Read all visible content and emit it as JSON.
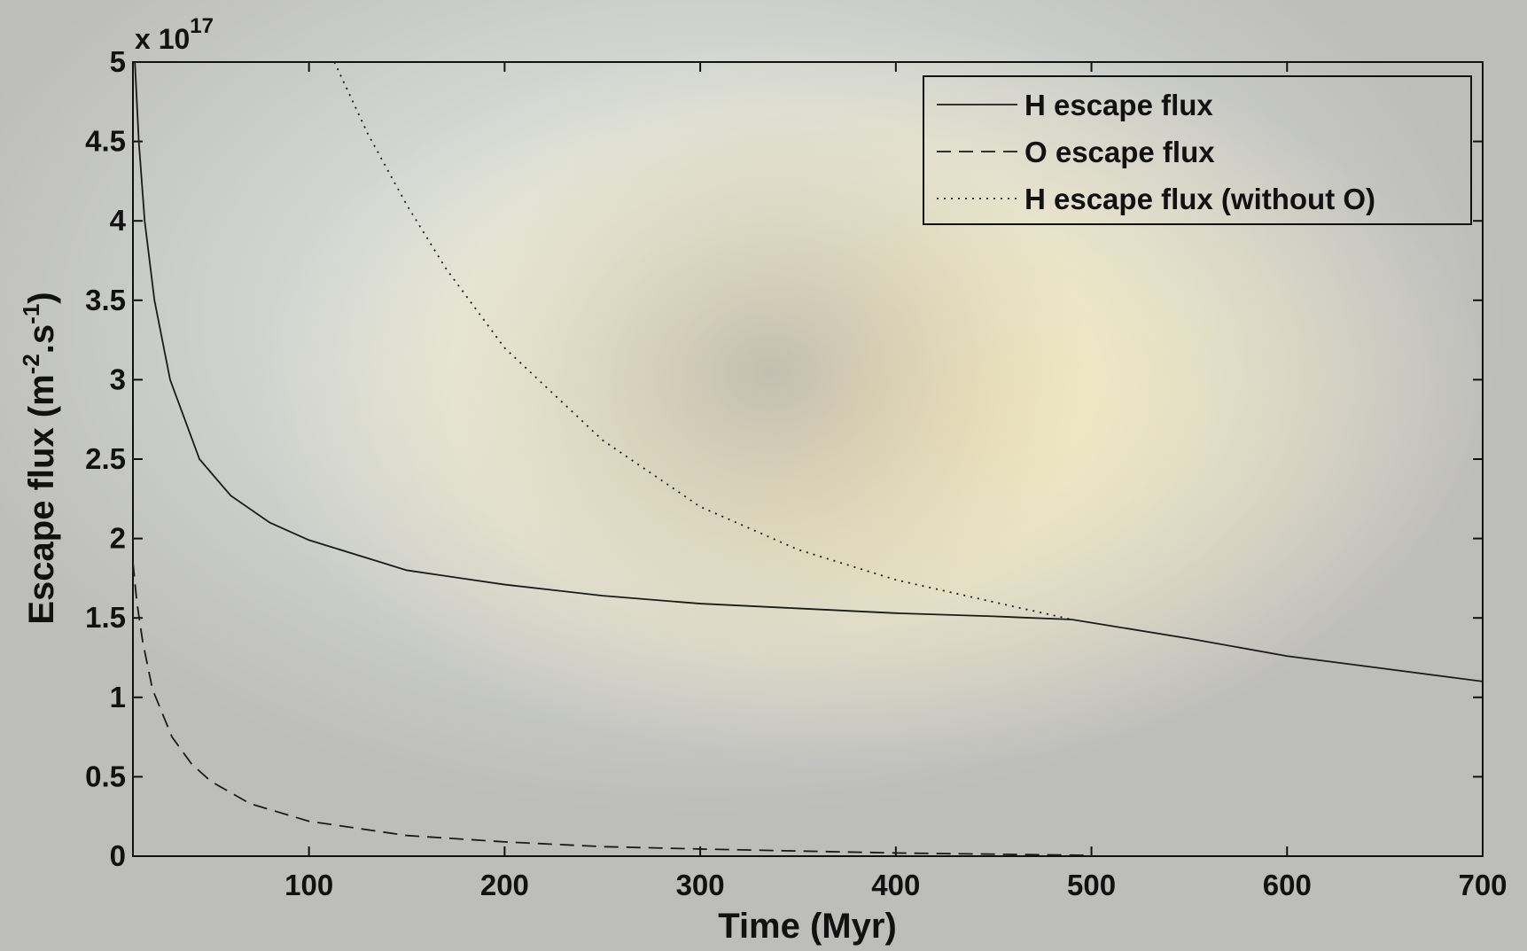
{
  "chart_data": {
    "type": "line",
    "x_label": "Time (Myr)",
    "y_label_parts": [
      "Escape flux (m",
      "-2",
      ".s",
      "-1",
      ")"
    ],
    "y_multiplier": {
      "base": "x 10",
      "exponent": "17"
    },
    "xlim": [
      10,
      700
    ],
    "ylim": [
      0,
      5
    ],
    "xticks": [
      100,
      200,
      300,
      400,
      500,
      600,
      700
    ],
    "yticks": [
      0,
      0.5,
      1,
      1.5,
      2,
      2.5,
      3,
      3.5,
      4,
      4.5,
      5
    ],
    "legend": "upper right",
    "series": [
      {
        "name": "H escape flux",
        "color": "#1a1a1a",
        "dash": "solid",
        "x": [
          11,
          13,
          16,
          21,
          29,
          44,
          60,
          80,
          100,
          150,
          200,
          250,
          300,
          350,
          400,
          450,
          490,
          550,
          600,
          650,
          700
        ],
        "values": [
          5.0,
          4.5,
          4.0,
          3.5,
          3.0,
          2.5,
          2.27,
          2.1,
          1.99,
          1.8,
          1.71,
          1.64,
          1.59,
          1.56,
          1.53,
          1.51,
          1.49,
          1.37,
          1.26,
          1.18,
          1.1
        ]
      },
      {
        "name": "O escape flux",
        "color": "#1a1a1a",
        "dash": "dashed",
        "x": [
          10,
          12,
          15,
          20,
          30,
          40,
          50,
          70,
          100,
          150,
          200,
          250,
          300,
          400,
          500
        ],
        "values": [
          1.85,
          1.6,
          1.35,
          1.05,
          0.75,
          0.58,
          0.47,
          0.33,
          0.22,
          0.13,
          0.09,
          0.06,
          0.045,
          0.02,
          0.005
        ]
      },
      {
        "name": "H escape flux (without O)",
        "color": "#1a1a1a",
        "dash": "dotted",
        "x": [
          113,
          130,
          150,
          170,
          200,
          250,
          300,
          350,
          400,
          450,
          490
        ],
        "values": [
          5.0,
          4.55,
          4.1,
          3.7,
          3.2,
          2.62,
          2.2,
          1.93,
          1.74,
          1.6,
          1.49
        ]
      }
    ]
  }
}
